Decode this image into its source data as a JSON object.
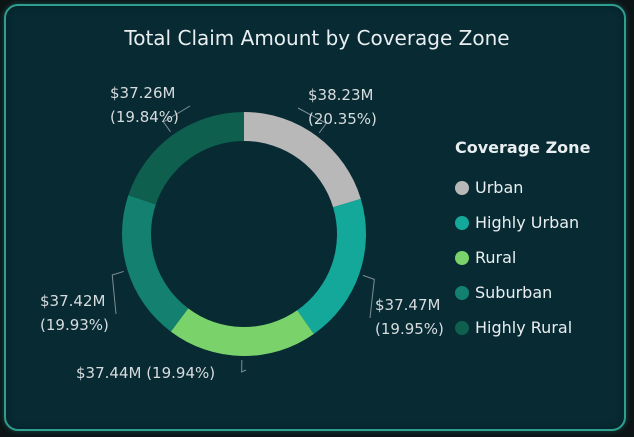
{
  "chart_data": {
    "type": "donut",
    "title": "Total Claim Amount by Coverage Zone",
    "legend_title": "Coverage Zone",
    "legend_position": "right",
    "categories": [
      "Urban",
      "Highly Urban",
      "Rural",
      "Suburban",
      "Highly Rural"
    ],
    "values": [
      38.23,
      37.47,
      37.44,
      37.42,
      37.26
    ],
    "value_labels": [
      "$38.23M",
      "$37.47M",
      "$37.44M",
      "$37.42M",
      "$37.26M"
    ],
    "percent_labels": [
      "(20.35%)",
      "(19.95%)",
      "(19.94%)",
      "(19.93%)",
      "(19.84%)"
    ],
    "colors": [
      "#b8b8b8",
      "#14a89a",
      "#7ad36a",
      "#14806f",
      "#0e5f4e"
    ]
  }
}
